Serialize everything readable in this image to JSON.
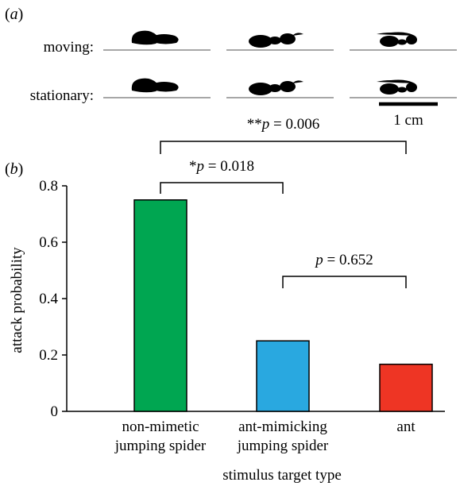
{
  "panel_a": {
    "label_open": "(",
    "label_letter": "a",
    "label_close": ")",
    "rows": [
      {
        "label": "moving:",
        "silhouettes": [
          "non-mimetic jumping spider",
          "ant-mimicking jumping spider",
          "ant"
        ]
      },
      {
        "label": "stationary:",
        "silhouettes": [
          "non-mimetic jumping spider",
          "ant-mimicking jumping spider",
          "ant"
        ]
      }
    ],
    "scale_bar_label": "1 cm"
  },
  "panel_b": {
    "label_open": "(",
    "label_letter": "b",
    "label_close": ")"
  },
  "chart_data": {
    "type": "bar",
    "categories": [
      [
        "non-mimetic",
        "jumping spider"
      ],
      [
        "ant-mimicking",
        "jumping spider"
      ],
      [
        "ant"
      ]
    ],
    "values": [
      0.75,
      0.25,
      0.167
    ],
    "colors": [
      "#00a651",
      "#29a8e0",
      "#ee3524"
    ],
    "xlabel": "stimulus target type",
    "ylabel": "attack probability",
    "ylim": [
      0,
      0.8
    ],
    "yticks": [
      0,
      0.2,
      0.4,
      0.6,
      0.8
    ],
    "ytick_labels": [
      "0",
      "0.2",
      "0.4",
      "0.6",
      "0.8"
    ],
    "significance": [
      {
        "from": 0,
        "to": 1,
        "stars": "*",
        "p_symbol": "p",
        "p_value": " = 0.018"
      },
      {
        "from": 0,
        "to": 2,
        "stars": "**",
        "p_symbol": "p",
        "p_value": " = 0.006"
      },
      {
        "from": 1,
        "to": 2,
        "stars": "",
        "p_symbol": "p",
        "p_value": " = 0.652"
      }
    ]
  }
}
